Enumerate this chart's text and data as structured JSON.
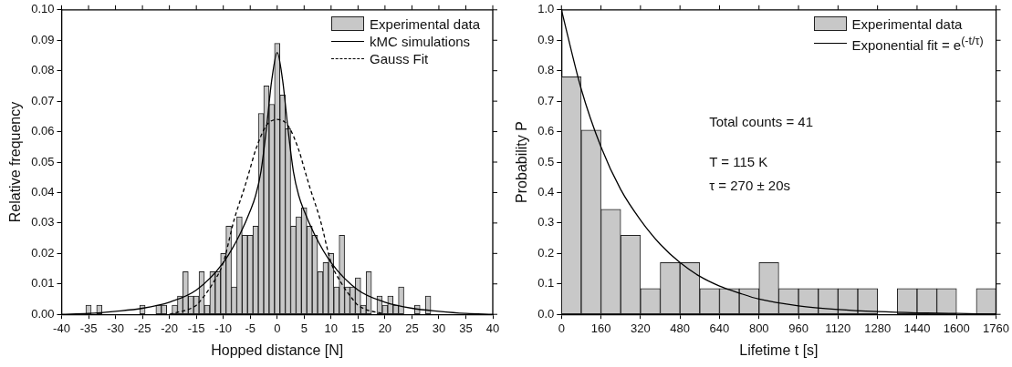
{
  "chart_data": [
    {
      "type": "histogram",
      "xlabel": "Hopped distance [N]",
      "ylabel": "Relative frequency",
      "legend": "top right",
      "grid": false,
      "bins": [
        -35.5,
        -34.5,
        -33.5,
        -32.5,
        -31.5,
        -30.5,
        -29.5,
        -28.5,
        -27.5,
        -26.5,
        -25.5,
        -24.5,
        -23.5,
        -22.5,
        -21.5,
        -20.5,
        -19.5,
        -18.5,
        -17.5,
        -16.5,
        -15.5,
        -14.5,
        -13.5,
        -12.5,
        -11.5,
        -10.5,
        -9.5,
        -8.5,
        -7.5,
        -6.5,
        -5.5,
        -4.5,
        -3.5,
        -2.5,
        -1.5,
        -0.5,
        0.5,
        1.5,
        2.5,
        3.5,
        4.5,
        5.5,
        6.5,
        7.5,
        8.5,
        9.5,
        10.5,
        11.5,
        12.5,
        13.5,
        14.5,
        15.5,
        16.5,
        17.5,
        18.5,
        19.5,
        20.5,
        21.5,
        22.5,
        23.5,
        24.5,
        25.5,
        26.5,
        27.5,
        28.5
      ],
      "xlim": [
        -40,
        40
      ],
      "xticks": [
        -40,
        -35,
        -30,
        -25,
        -20,
        -15,
        -10,
        -5,
        0,
        5,
        10,
        15,
        20,
        25,
        30,
        35,
        40
      ],
      "ylim": [
        0,
        0.1
      ],
      "yticks": [
        {
          "value": 0,
          "label": "0.00"
        },
        {
          "value": 0.01,
          "label": "0.01"
        },
        {
          "value": 0.02,
          "label": "0.02"
        },
        {
          "value": 0.03,
          "label": "0.03"
        },
        {
          "value": 0.04,
          "label": "0.04"
        },
        {
          "value": 0.05,
          "label": "0.05"
        },
        {
          "value": 0.06,
          "label": "0.06"
        },
        {
          "value": 0.07,
          "label": "0.07"
        },
        {
          "value": 0.08,
          "label": "0.08"
        },
        {
          "value": 0.09,
          "label": "0.09"
        },
        {
          "value": 0.1,
          "label": "0.10"
        }
      ],
      "series": [
        {
          "name": "Experimental data",
          "color": "#c8c8c8",
          "values": [
            0.003,
            0,
            0.003,
            0,
            0,
            0,
            0,
            0,
            0,
            0,
            0.003,
            0,
            0,
            0.003,
            0.003,
            0,
            0.003,
            0.006,
            0.014,
            0.006,
            0.006,
            0.014,
            0.003,
            0.014,
            0.014,
            0.02,
            0.029,
            0.009,
            0.032,
            0.026,
            0.026,
            0.029,
            0.066,
            0.075,
            0.069,
            0.089,
            0.072,
            0.061,
            0.029,
            0.032,
            0.035,
            0.029,
            0.026,
            0.014,
            0.017,
            0.02,
            0.009,
            0.026,
            0.009,
            0.009,
            0.012,
            0.003,
            0.014,
            0,
            0.006,
            0.003,
            0.006,
            0.003,
            0.009,
            0,
            0,
            0.003,
            0,
            0.006
          ]
        },
        {
          "name": "kMC simulations",
          "type": "line",
          "line_style": "solid",
          "color": "#000000",
          "x": [
            -40,
            -35,
            -30,
            -25,
            -20,
            -15,
            -10,
            -7,
            -5,
            -4,
            -3,
            -2,
            -1,
            0,
            1,
            2,
            3,
            4,
            5,
            7,
            10,
            15,
            20,
            25,
            30,
            35,
            40
          ],
          "values": [
            0,
            0.0003,
            0.001,
            0.002,
            0.004,
            0.008,
            0.017,
            0.026,
            0.034,
            0.039,
            0.047,
            0.061,
            0.077,
            0.086,
            0.077,
            0.061,
            0.047,
            0.039,
            0.034,
            0.026,
            0.017,
            0.008,
            0.004,
            0.002,
            0.001,
            0.0003,
            0
          ]
        },
        {
          "name": "Gauss Fit",
          "type": "line",
          "line_style": "dashed",
          "color": "#000000",
          "x": [
            -20,
            -15,
            -14,
            -12,
            -10,
            -8,
            -6,
            -5,
            -4,
            -2,
            0,
            2,
            4,
            5,
            6,
            8,
            10,
            12,
            14,
            15,
            20
          ],
          "values": [
            0,
            0.003,
            0.005,
            0.01,
            0.017,
            0.031,
            0.042,
            0.048,
            0.054,
            0.062,
            0.064,
            0.062,
            0.054,
            0.048,
            0.042,
            0.031,
            0.017,
            0.01,
            0.005,
            0.003,
            0
          ]
        }
      ]
    },
    {
      "type": "histogram",
      "xlabel": "Lifetime t [s]",
      "ylabel": "Probability P",
      "legend": "top right",
      "grid": false,
      "annotations": [
        "Total counts = 41",
        "T = 115 K",
        "τ = 270 ± 20s"
      ],
      "bins": [
        0,
        80,
        160,
        240,
        320,
        400,
        480,
        560,
        640,
        720,
        800,
        880,
        960,
        1040,
        1120,
        1200,
        1280,
        1360,
        1440,
        1520,
        1600,
        1680,
        1760
      ],
      "xlim": [
        0,
        1760
      ],
      "xticks": [
        0,
        160,
        320,
        480,
        640,
        800,
        960,
        1120,
        1280,
        1440,
        1600,
        1760
      ],
      "ylim": [
        0,
        1
      ],
      "yticks": [
        {
          "value": 0,
          "label": "0.0"
        },
        {
          "value": 0.1,
          "label": "0.1"
        },
        {
          "value": 0.2,
          "label": "0.2"
        },
        {
          "value": 0.3,
          "label": "0.3"
        },
        {
          "value": 0.4,
          "label": "0.4"
        },
        {
          "value": 0.5,
          "label": "0.5"
        },
        {
          "value": 0.6,
          "label": "0.6"
        },
        {
          "value": 0.7,
          "label": "0.7"
        },
        {
          "value": 0.8,
          "label": "0.8"
        },
        {
          "value": 0.9,
          "label": "0.9"
        },
        {
          "value": 1,
          "label": "1.0"
        }
      ],
      "series": [
        {
          "name": "Experimental data",
          "color": "#c8c8c8",
          "values": [
            0.78,
            0.605,
            0.345,
            0.26,
            0.085,
            0.17,
            0.17,
            0.085,
            0.085,
            0.085,
            0.17,
            0.085,
            0.085,
            0.085,
            0.085,
            0.085,
            0,
            0.085,
            0.085,
            0.085,
            0,
            0.085
          ]
        },
        {
          "name": "Exponential fit = e$^{(-t/τ)}$",
          "type": "line",
          "line_style": "solid",
          "color": "#000000",
          "x": [
            0,
            80,
            160,
            240,
            320,
            400,
            480,
            560,
            640,
            720,
            800,
            960,
            1120,
            1280,
            1440,
            1600,
            1760
          ],
          "values": [
            1,
            0.74,
            0.55,
            0.41,
            0.31,
            0.23,
            0.17,
            0.125,
            0.093,
            0.07,
            0.05,
            0.028,
            0.016,
            0.009,
            0.005,
            0.003,
            0.001
          ]
        }
      ]
    }
  ]
}
